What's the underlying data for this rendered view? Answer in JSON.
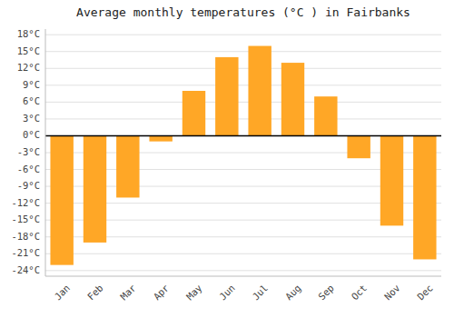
{
  "chart_data": {
    "type": "bar",
    "title": "Average monthly temperatures (°C ) in Fairbanks",
    "categories": [
      "Jan",
      "Feb",
      "Mar",
      "Apr",
      "May",
      "Jun",
      "Jul",
      "Aug",
      "Sep",
      "Oct",
      "Nov",
      "Dec"
    ],
    "values": [
      -23,
      -19,
      -11,
      -1,
      8,
      14,
      16,
      13,
      7,
      -4,
      -16,
      -22
    ],
    "color": "#FFA726",
    "ylim": [
      -25,
      19
    ],
    "yticks": [
      {
        "value": -24,
        "label": "-24°C"
      },
      {
        "value": -21,
        "label": "-21°C"
      },
      {
        "value": -18,
        "label": "-18°C"
      },
      {
        "value": -15,
        "label": "-15°C"
      },
      {
        "value": -12,
        "label": "-12°C"
      },
      {
        "value": -9,
        "label": "-9°C"
      },
      {
        "value": -6,
        "label": "-6°C"
      },
      {
        "value": -3,
        "label": "-3°C"
      },
      {
        "value": 0,
        "label": "0°C"
      },
      {
        "value": 3,
        "label": "3°C"
      },
      {
        "value": 6,
        "label": "6°C"
      },
      {
        "value": 9,
        "label": "9°C"
      },
      {
        "value": 12,
        "label": "12°C"
      },
      {
        "value": 15,
        "label": "15°C"
      },
      {
        "value": 18,
        "label": "18°C"
      }
    ],
    "grid": true
  }
}
